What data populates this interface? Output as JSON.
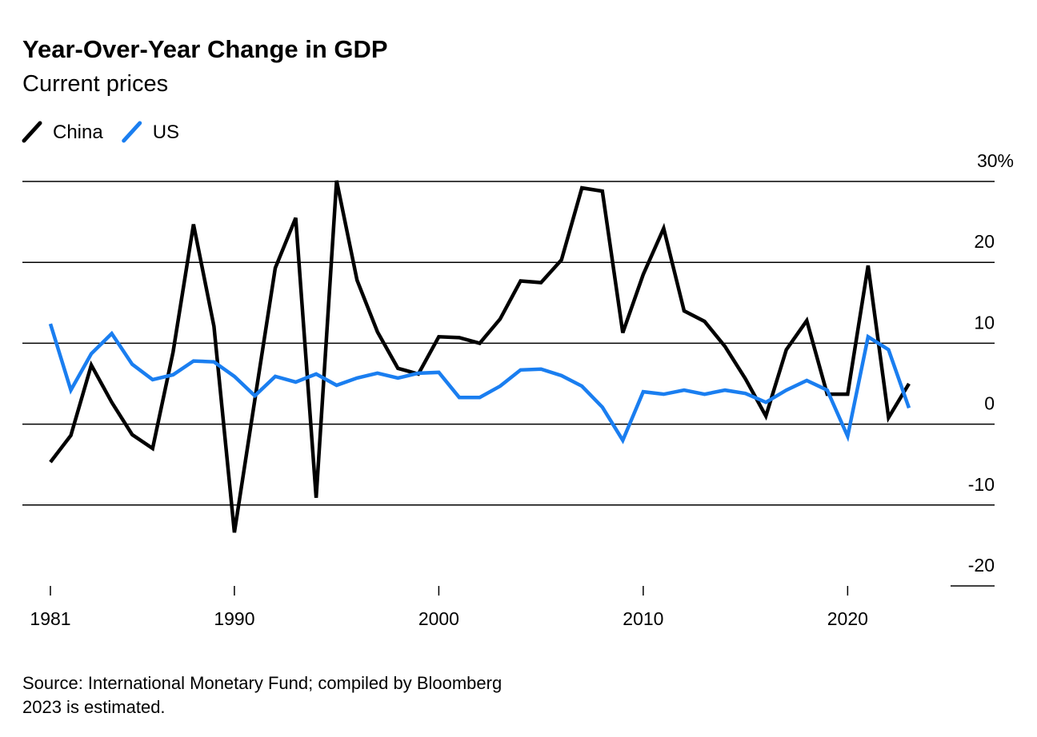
{
  "chart_data": {
    "type": "line",
    "title": "Year-Over-Year Change in GDP",
    "subtitle": "Current prices",
    "source": "Source: International Monetary Fund; compiled by Bloomberg",
    "note": "2023 is estimated.",
    "x": [
      1981,
      1982,
      1983,
      1984,
      1985,
      1986,
      1987,
      1988,
      1989,
      1990,
      1991,
      1992,
      1993,
      1994,
      1995,
      1996,
      1997,
      1998,
      1999,
      2000,
      2001,
      2002,
      2003,
      2004,
      2005,
      2006,
      2007,
      2008,
      2009,
      2010,
      2011,
      2012,
      2013,
      2014,
      2015,
      2016,
      2017,
      2018,
      2019,
      2020,
      2021,
      2022,
      2023
    ],
    "series": [
      {
        "name": "China",
        "color": "#000000",
        "values": [
          -4.7,
          -1.4,
          7.3,
          2.7,
          -1.3,
          -3.0,
          8.9,
          24.7,
          12.1,
          -13.4,
          3.0,
          19.3,
          25.5,
          -9.1,
          30.1,
          17.8,
          11.4,
          6.9,
          6.2,
          10.8,
          10.7,
          10.0,
          13.0,
          17.7,
          17.5,
          20.3,
          29.2,
          28.8,
          11.3,
          18.5,
          24.2,
          14.0,
          12.7,
          9.6,
          5.6,
          1.0,
          9.2,
          12.8,
          3.7,
          3.7,
          19.6,
          0.8,
          5.0
        ]
      },
      {
        "name": "US",
        "color": "#1a7ef0",
        "values": [
          12.4,
          4.2,
          8.7,
          11.2,
          7.4,
          5.5,
          6.1,
          7.8,
          7.7,
          5.9,
          3.5,
          5.9,
          5.2,
          6.2,
          4.8,
          5.7,
          6.3,
          5.7,
          6.3,
          6.4,
          3.3,
          3.3,
          4.7,
          6.7,
          6.8,
          6.0,
          4.7,
          2.1,
          -2.0,
          4.0,
          3.7,
          4.2,
          3.7,
          4.2,
          3.8,
          2.7,
          4.2,
          5.4,
          4.2,
          -1.5,
          10.8,
          9.2,
          2.0
        ]
      }
    ],
    "xlim": [
      1981,
      2023
    ],
    "xticks": [
      1981,
      1990,
      2000,
      2010,
      2020
    ],
    "ylim": [
      -20,
      30
    ],
    "yticks": [
      -20,
      -10,
      0,
      10,
      20,
      {
        "value": 30,
        "label": "30%"
      }
    ],
    "grid": true
  }
}
